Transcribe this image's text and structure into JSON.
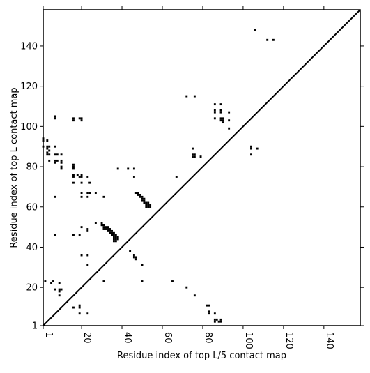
{
  "chart_data": {
    "type": "scatter",
    "title": "",
    "xlabel": "Residue index of top L/5 contact map",
    "ylabel": "Residue index of top L contact map",
    "xlim": [
      1,
      158
    ],
    "ylim": [
      1,
      158
    ],
    "xticks": [
      1,
      20,
      40,
      60,
      80,
      100,
      120,
      140
    ],
    "yticks": [
      1,
      20,
      40,
      60,
      80,
      100,
      120,
      140
    ],
    "grid": false,
    "diagonal": {
      "from": [
        1,
        1
      ],
      "to": [
        158,
        158
      ]
    },
    "colors": {
      "points": "#000000",
      "diagonal": "#000000",
      "axes": "#000000"
    },
    "series": [
      {
        "points": [
          [
            1,
            94
          ],
          [
            1,
            93
          ],
          [
            1,
            90
          ],
          [
            3,
            93
          ],
          [
            3,
            90
          ],
          [
            3,
            89
          ],
          [
            4,
            90
          ],
          [
            4,
            88
          ],
          [
            3,
            87
          ],
          [
            3,
            86
          ],
          [
            4,
            86
          ],
          [
            4,
            83
          ],
          [
            7,
            83
          ],
          [
            7,
            82
          ],
          [
            8,
            83
          ],
          [
            7,
            86
          ],
          [
            8,
            86
          ],
          [
            10,
            86
          ],
          [
            7,
            90
          ],
          [
            10,
            83
          ],
          [
            10,
            82
          ],
          [
            10,
            80
          ],
          [
            10,
            79
          ],
          [
            7,
            104
          ],
          [
            7,
            105
          ],
          [
            7,
            65
          ],
          [
            7,
            46
          ],
          [
            2,
            23
          ],
          [
            5,
            22
          ],
          [
            6,
            23
          ],
          [
            7,
            19
          ],
          [
            9,
            22
          ],
          [
            9,
            19
          ],
          [
            10,
            19
          ],
          [
            9,
            18
          ],
          [
            9,
            16
          ],
          [
            16,
            104
          ],
          [
            16,
            103
          ],
          [
            19,
            104
          ],
          [
            20,
            104
          ],
          [
            20,
            103
          ],
          [
            16,
            81
          ],
          [
            16,
            80
          ],
          [
            16,
            79
          ],
          [
            16,
            76
          ],
          [
            16,
            75
          ],
          [
            18,
            76
          ],
          [
            19,
            75
          ],
          [
            20,
            76
          ],
          [
            20,
            75
          ],
          [
            23,
            75
          ],
          [
            16,
            72
          ],
          [
            20,
            72
          ],
          [
            24,
            72
          ],
          [
            20,
            67
          ],
          [
            20,
            65
          ],
          [
            23,
            67
          ],
          [
            24,
            67
          ],
          [
            23,
            65
          ],
          [
            27,
            67
          ],
          [
            31,
            65
          ],
          [
            16,
            46
          ],
          [
            19,
            46
          ],
          [
            20,
            50
          ],
          [
            23,
            49
          ],
          [
            23,
            48
          ],
          [
            20,
            36
          ],
          [
            23,
            36
          ],
          [
            23,
            31
          ],
          [
            31,
            23
          ],
          [
            16,
            10
          ],
          [
            19,
            11
          ],
          [
            19,
            10
          ],
          [
            19,
            7
          ],
          [
            23,
            7
          ],
          [
            27,
            52
          ],
          [
            30,
            52
          ],
          [
            30,
            51
          ],
          [
            31,
            51
          ],
          [
            31,
            50
          ],
          [
            32,
            50
          ],
          [
            32,
            49
          ],
          [
            33,
            50
          ],
          [
            33,
            49
          ],
          [
            33,
            48
          ],
          [
            34,
            49
          ],
          [
            34,
            48
          ],
          [
            34,
            47
          ],
          [
            35,
            48
          ],
          [
            35,
            47
          ],
          [
            35,
            46
          ],
          [
            36,
            47
          ],
          [
            36,
            46
          ],
          [
            36,
            45
          ],
          [
            36,
            44
          ],
          [
            36,
            43
          ],
          [
            37,
            46
          ],
          [
            37,
            45
          ],
          [
            37,
            44
          ],
          [
            37,
            43
          ],
          [
            38,
            45
          ],
          [
            38,
            44
          ],
          [
            31,
            49
          ],
          [
            38,
            79
          ],
          [
            43,
            79
          ],
          [
            46,
            79
          ],
          [
            46,
            75
          ],
          [
            44,
            38
          ],
          [
            46,
            36
          ],
          [
            46,
            35
          ],
          [
            47,
            35
          ],
          [
            47,
            34
          ],
          [
            50,
            31
          ],
          [
            50,
            23
          ],
          [
            47,
            67
          ],
          [
            48,
            67
          ],
          [
            48,
            66
          ],
          [
            49,
            66
          ],
          [
            49,
            65
          ],
          [
            50,
            65
          ],
          [
            50,
            64
          ],
          [
            50,
            63
          ],
          [
            51,
            64
          ],
          [
            51,
            63
          ],
          [
            51,
            62
          ],
          [
            52,
            62
          ],
          [
            52,
            61
          ],
          [
            53,
            62
          ],
          [
            53,
            61
          ],
          [
            53,
            60
          ],
          [
            54,
            61
          ],
          [
            54,
            60
          ],
          [
            52,
            60
          ],
          [
            65,
            23
          ],
          [
            67,
            75
          ],
          [
            72,
            20
          ],
          [
            72,
            115
          ],
          [
            76,
            115
          ],
          [
            75,
            89
          ],
          [
            75,
            86
          ],
          [
            75,
            85
          ],
          [
            76,
            86
          ],
          [
            76,
            85
          ],
          [
            76,
            16
          ],
          [
            79,
            85
          ],
          [
            82,
            11
          ],
          [
            83,
            11
          ],
          [
            83,
            8
          ],
          [
            83,
            7
          ],
          [
            86,
            7
          ],
          [
            86,
            4
          ],
          [
            86,
            3
          ],
          [
            87,
            4
          ],
          [
            88,
            3
          ],
          [
            89,
            4
          ],
          [
            89,
            3
          ],
          [
            86,
            111
          ],
          [
            86,
            108
          ],
          [
            86,
            107
          ],
          [
            86,
            104
          ],
          [
            89,
            111
          ],
          [
            89,
            108
          ],
          [
            89,
            107
          ],
          [
            89,
            104
          ],
          [
            89,
            103
          ],
          [
            90,
            104
          ],
          [
            90,
            103
          ],
          [
            90,
            102
          ],
          [
            93,
            107
          ],
          [
            93,
            103
          ],
          [
            93,
            99
          ],
          [
            104,
            90
          ],
          [
            104,
            89
          ],
          [
            104,
            86
          ],
          [
            107,
            89
          ],
          [
            106,
            148
          ],
          [
            112,
            143
          ],
          [
            115,
            143
          ]
        ]
      }
    ]
  }
}
